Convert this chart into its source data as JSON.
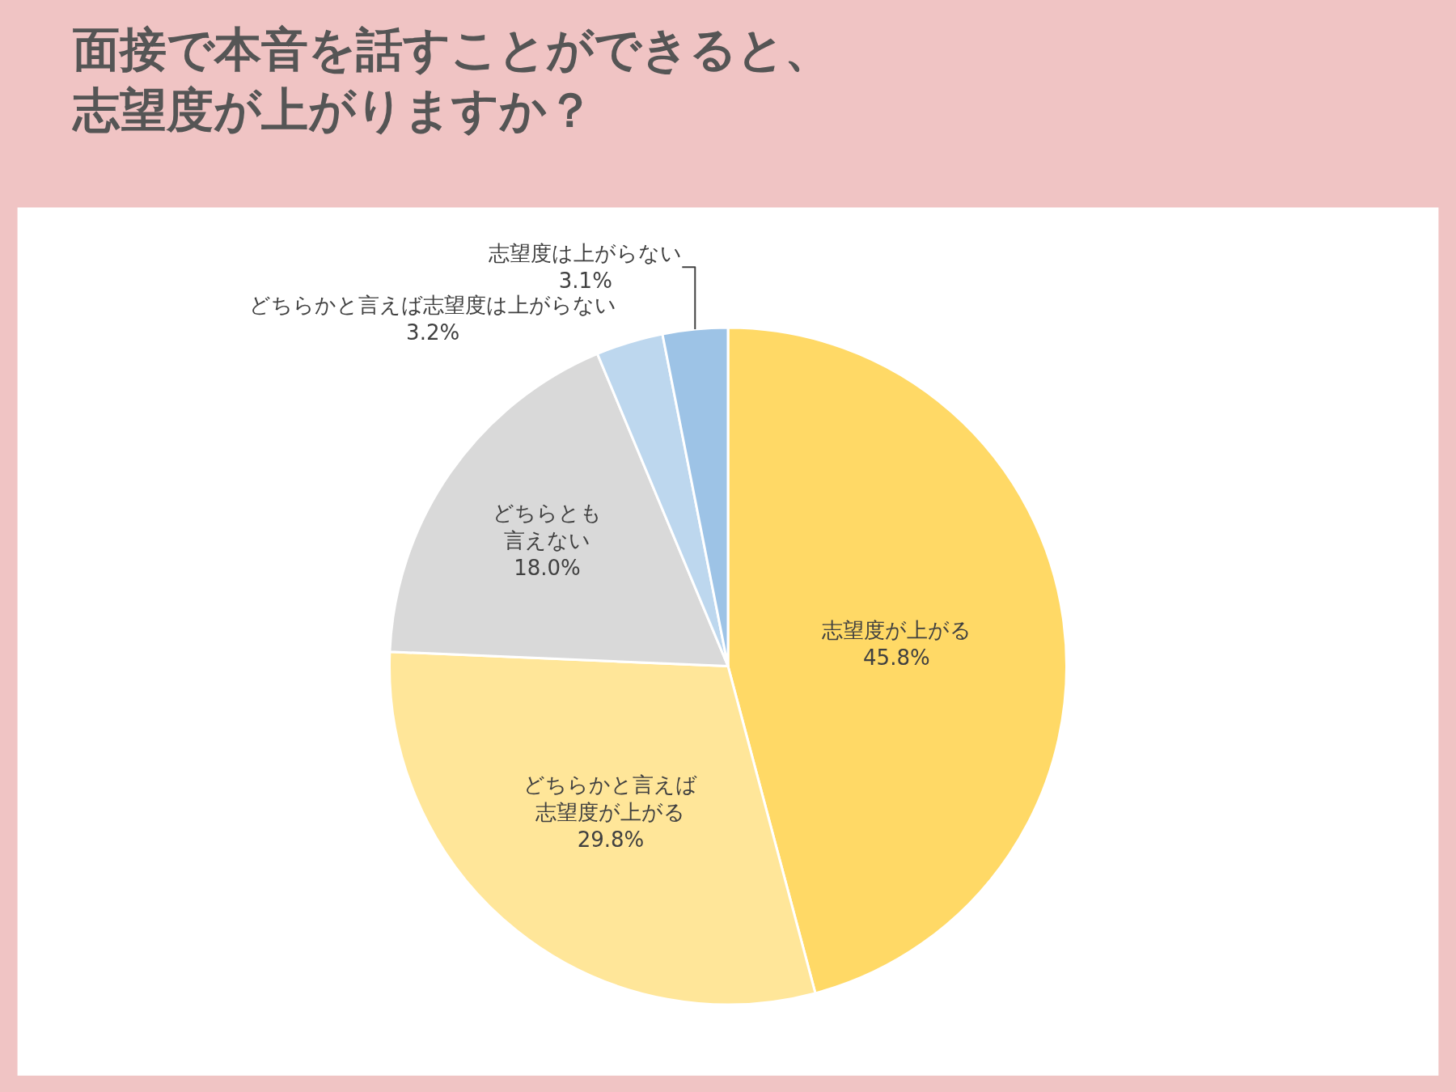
{
  "chart_data": {
    "type": "pie",
    "title": "面接で本音を話すことができると、志望度が上がりますか？",
    "categories": [
      "志望度が上がる",
      "どちらかと言えば志望度が上がる",
      "どちらとも言えない",
      "どちらかと言えば志望度は上がらない",
      "志望度は上がらない"
    ],
    "values": [
      45.8,
      29.8,
      18.0,
      3.2,
      3.1
    ],
    "value_labels": [
      "45.8%",
      "29.8%",
      "18.0%",
      "3.2%",
      "3.1%"
    ],
    "colors": [
      "#ffd966",
      "#ffe699",
      "#d9d9d9",
      "#bdd7ee",
      "#9dc3e6"
    ],
    "legend": false
  }
}
